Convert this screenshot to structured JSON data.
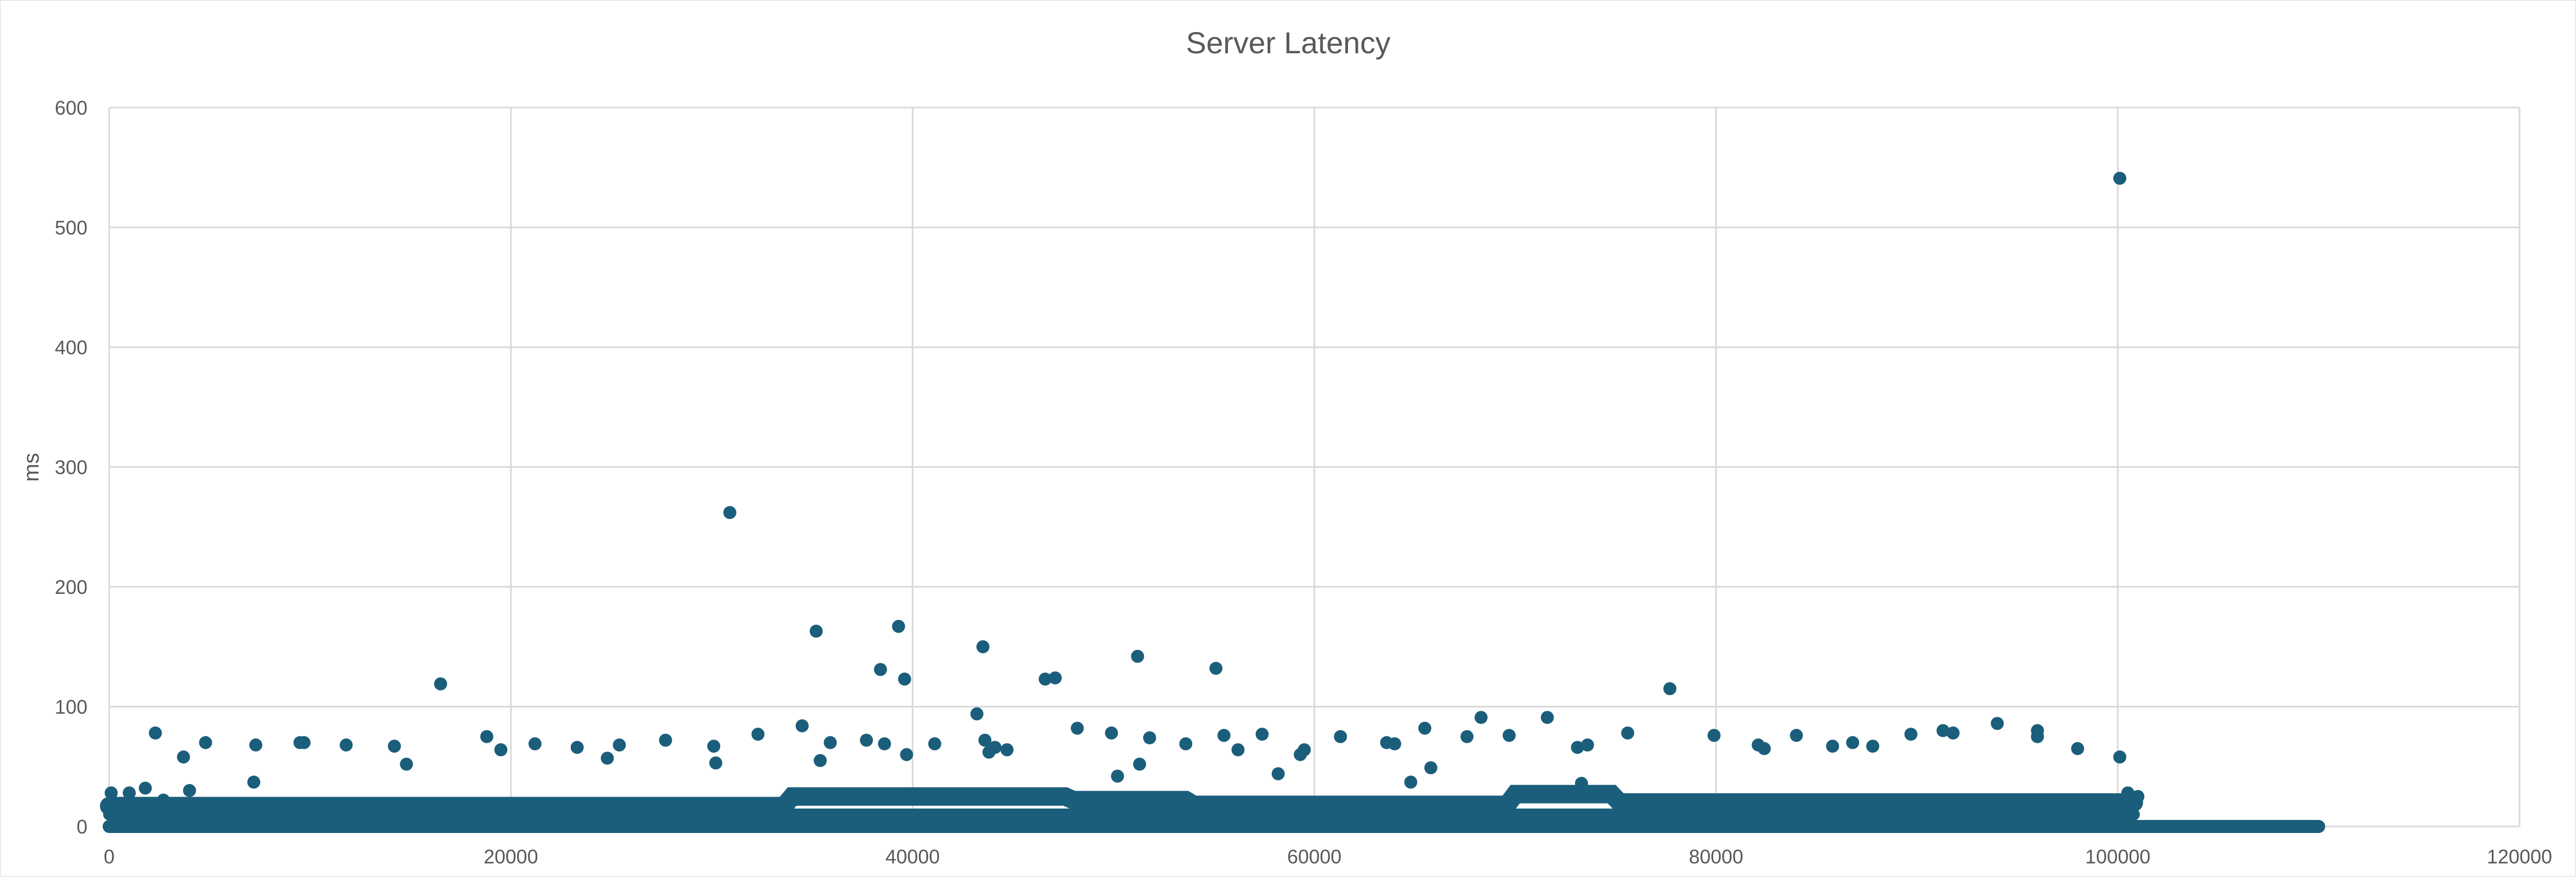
{
  "chart_data": {
    "type": "scatter",
    "title": "Server Latency",
    "xlabel": "",
    "ylabel": "ms",
    "xlim": [
      0,
      120000
    ],
    "ylim": [
      0,
      600
    ],
    "x_ticks": [
      0,
      20000,
      40000,
      60000,
      80000,
      100000,
      120000
    ],
    "y_ticks": [
      0,
      100,
      200,
      300,
      400,
      500,
      600
    ],
    "grid": true,
    "legend": "none",
    "marker_color": "#1b5e7b",
    "series": [
      {
        "points": [
          [
            100,
            28
          ],
          [
            1000,
            28
          ],
          [
            1800,
            32
          ],
          [
            2300,
            78
          ],
          [
            2700,
            22
          ],
          [
            3700,
            58
          ],
          [
            4000,
            30
          ],
          [
            4800,
            70
          ],
          [
            7200,
            37
          ],
          [
            7300,
            68
          ],
          [
            9500,
            70
          ],
          [
            9700,
            70
          ],
          [
            11800,
            68
          ],
          [
            14200,
            67
          ],
          [
            14800,
            52
          ],
          [
            16500,
            119
          ],
          [
            18800,
            75
          ],
          [
            19500,
            64
          ],
          [
            21200,
            69
          ],
          [
            23300,
            66
          ],
          [
            24800,
            57
          ],
          [
            25400,
            68
          ],
          [
            27700,
            72
          ],
          [
            30100,
            67
          ],
          [
            30200,
            53
          ],
          [
            30900,
            262
          ],
          [
            32300,
            77
          ],
          [
            34500,
            84
          ],
          [
            35200,
            163
          ],
          [
            35400,
            55
          ],
          [
            35900,
            70
          ],
          [
            37700,
            72
          ],
          [
            38400,
            131
          ],
          [
            38600,
            69
          ],
          [
            39300,
            167
          ],
          [
            39600,
            123
          ],
          [
            39700,
            60
          ],
          [
            41100,
            69
          ],
          [
            43200,
            94
          ],
          [
            43500,
            150
          ],
          [
            43600,
            72
          ],
          [
            43800,
            62
          ],
          [
            44100,
            66
          ],
          [
            44700,
            64
          ],
          [
            46600,
            123
          ],
          [
            47100,
            124
          ],
          [
            48200,
            82
          ],
          [
            49900,
            78
          ],
          [
            50200,
            42
          ],
          [
            51200,
            142
          ],
          [
            51300,
            52
          ],
          [
            51800,
            74
          ],
          [
            53600,
            69
          ],
          [
            55100,
            132
          ],
          [
            55500,
            76
          ],
          [
            56200,
            64
          ],
          [
            57400,
            77
          ],
          [
            58200,
            44
          ],
          [
            59300,
            60
          ],
          [
            59500,
            64
          ],
          [
            61300,
            75
          ],
          [
            63600,
            70
          ],
          [
            64000,
            69
          ],
          [
            64800,
            37
          ],
          [
            65500,
            82
          ],
          [
            65800,
            49
          ],
          [
            67600,
            75
          ],
          [
            68300,
            91
          ],
          [
            69700,
            76
          ],
          [
            71600,
            91
          ],
          [
            73100,
            66
          ],
          [
            73600,
            68
          ],
          [
            73300,
            36
          ],
          [
            75600,
            78
          ],
          [
            77700,
            115
          ],
          [
            79900,
            76
          ],
          [
            82100,
            68
          ],
          [
            82400,
            65
          ],
          [
            84000,
            76
          ],
          [
            85800,
            67
          ],
          [
            86800,
            70
          ],
          [
            87800,
            67
          ],
          [
            89700,
            77
          ],
          [
            91300,
            80
          ],
          [
            91800,
            78
          ],
          [
            94000,
            86
          ],
          [
            96000,
            80
          ],
          [
            96000,
            75
          ],
          [
            98000,
            65
          ],
          [
            100100,
            541
          ],
          [
            100100,
            58
          ],
          [
            100500,
            28
          ],
          [
            101000,
            25
          ]
        ]
      }
    ]
  }
}
